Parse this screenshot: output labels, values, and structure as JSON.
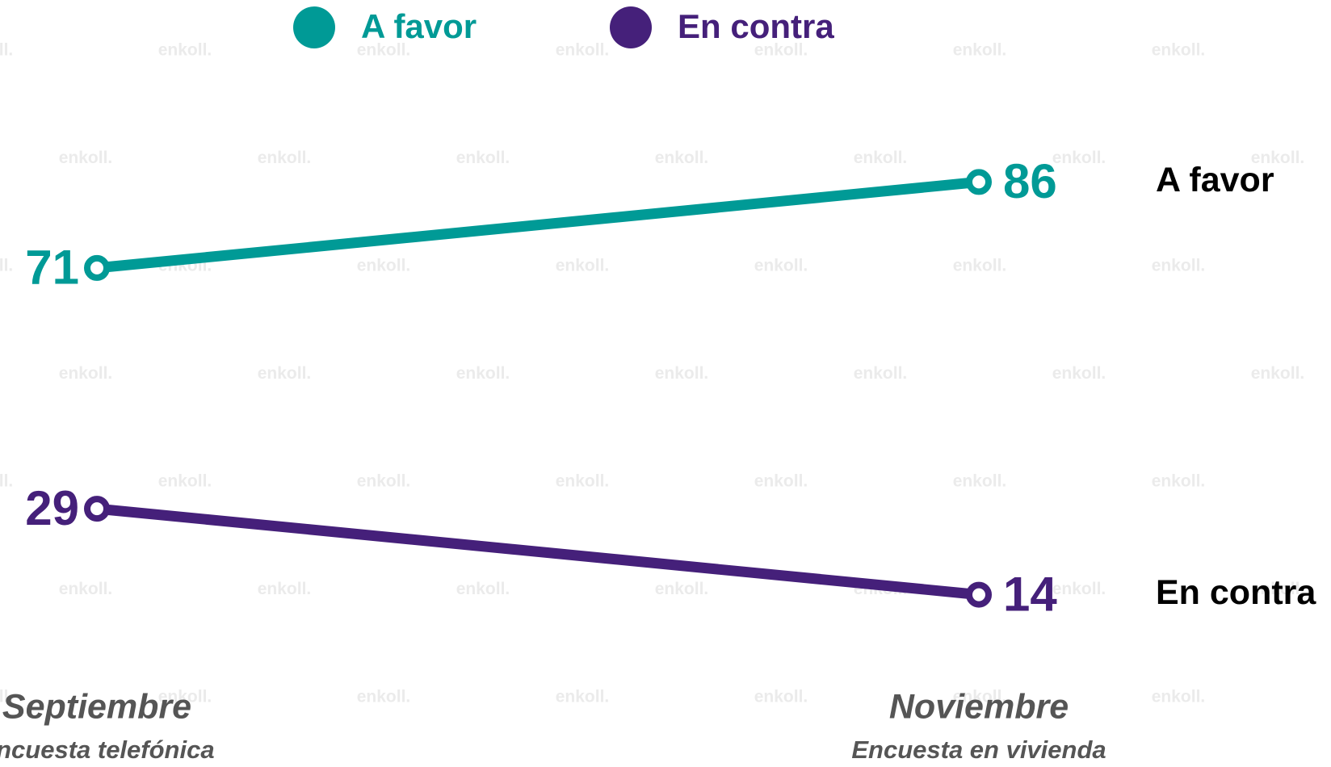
{
  "chart_data": {
    "type": "line",
    "watermark": "enkoll.",
    "categories": [
      "Septiembre",
      "Noviembre"
    ],
    "category_notes": [
      "Encuesta telefónica",
      "Encuesta en vivienda"
    ],
    "series": [
      {
        "name": "A favor",
        "color": "#009a96",
        "values": [
          71,
          86
        ]
      },
      {
        "name": "En contra",
        "color": "#45207a",
        "values": [
          29,
          14
        ]
      }
    ],
    "ylim": [
      0,
      100
    ]
  }
}
